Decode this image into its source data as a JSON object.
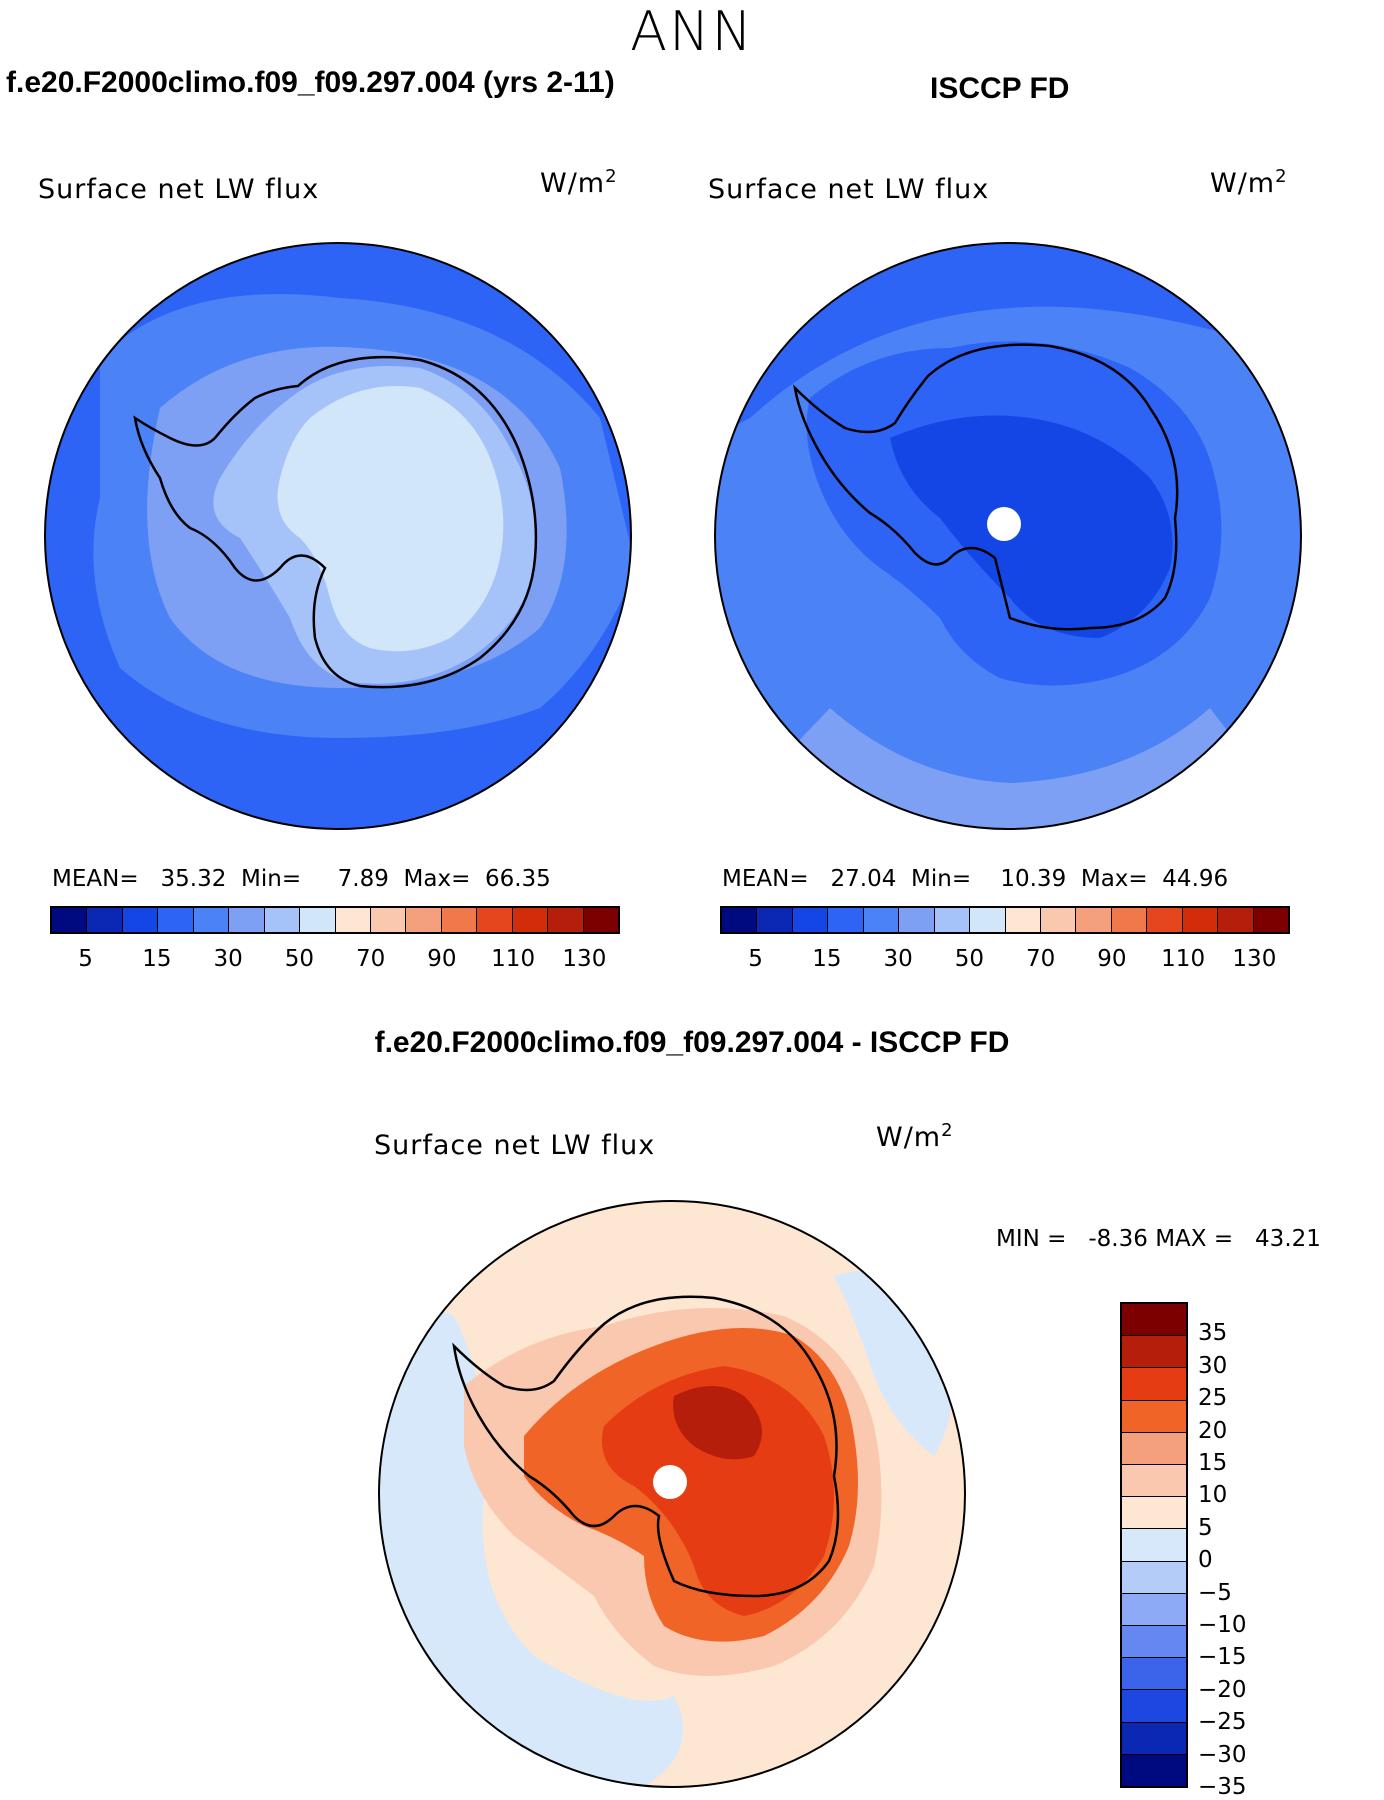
{
  "figure": {
    "season": "ANN",
    "variable_label": "Surface net LW flux",
    "units_base": "W/m",
    "units_exp": "2"
  },
  "panels": {
    "model": {
      "title": "f.e20.F2000climo.f09_f09.297.004 (yrs 2-11)",
      "mean_label": "MEAN=",
      "mean": "35.32",
      "min_label": "Min=",
      "min": "7.89",
      "max_label": "Max=",
      "max": "66.35"
    },
    "obs": {
      "title": "ISCCP FD",
      "mean_label": "MEAN=",
      "mean": "27.04",
      "min_label": "Min=",
      "min": "10.39",
      "max_label": "Max=",
      "max": "44.96"
    },
    "diff": {
      "title": "f.e20.F2000climo.f09_f09.297.004 - ISCCP FD",
      "min_label": "MIN =",
      "min": "-8.36",
      "max_label": "MAX =",
      "max": "43.21"
    }
  },
  "colorbar_abs": {
    "colors": [
      "#000a80",
      "#0a28b4",
      "#1446e6",
      "#2d64f5",
      "#4b82f5",
      "#7da0f5",
      "#a5c3f8",
      "#d2e6fa",
      "#fde6d2",
      "#fac8af",
      "#f5a07d",
      "#f0784b",
      "#e6461e",
      "#d22d0a",
      "#b41e0a",
      "#7d0000"
    ],
    "tick_labels": [
      "5",
      "15",
      "30",
      "50",
      "70",
      "90",
      "110",
      "130"
    ]
  },
  "colorbar_diff": {
    "colors": [
      "#7d0000",
      "#b41e0a",
      "#e63c14",
      "#f06428",
      "#f5a07d",
      "#fac8af",
      "#fde6d2",
      "#d7e8fa",
      "#b4cdf8",
      "#8caaf5",
      "#6487f0",
      "#3c64eb",
      "#1e46e1",
      "#0a28b4",
      "#000a80"
    ],
    "tick_labels": [
      "35",
      "30",
      "25",
      "20",
      "15",
      "10",
      "5",
      "0",
      "−5",
      "−10",
      "−15",
      "−20",
      "−25",
      "−30",
      "−35"
    ]
  },
  "map_colors": {
    "ocean_deep": "#2d64f5",
    "ocean_mid": "#4b82f5",
    "ocean_light": "#7da0f5",
    "land_pale": "#d2e6fa",
    "land_light": "#a5c3f8",
    "obs_land": "#2d64f5",
    "obs_land_deep": "#1446e6",
    "diff_ocean": "#d7e8fa",
    "diff_warm_low": "#fde6d2",
    "diff_warm": "#fac8af",
    "diff_mid": "#f06428",
    "diff_high": "#e63c14",
    "diff_peak": "#b41e0a"
  }
}
